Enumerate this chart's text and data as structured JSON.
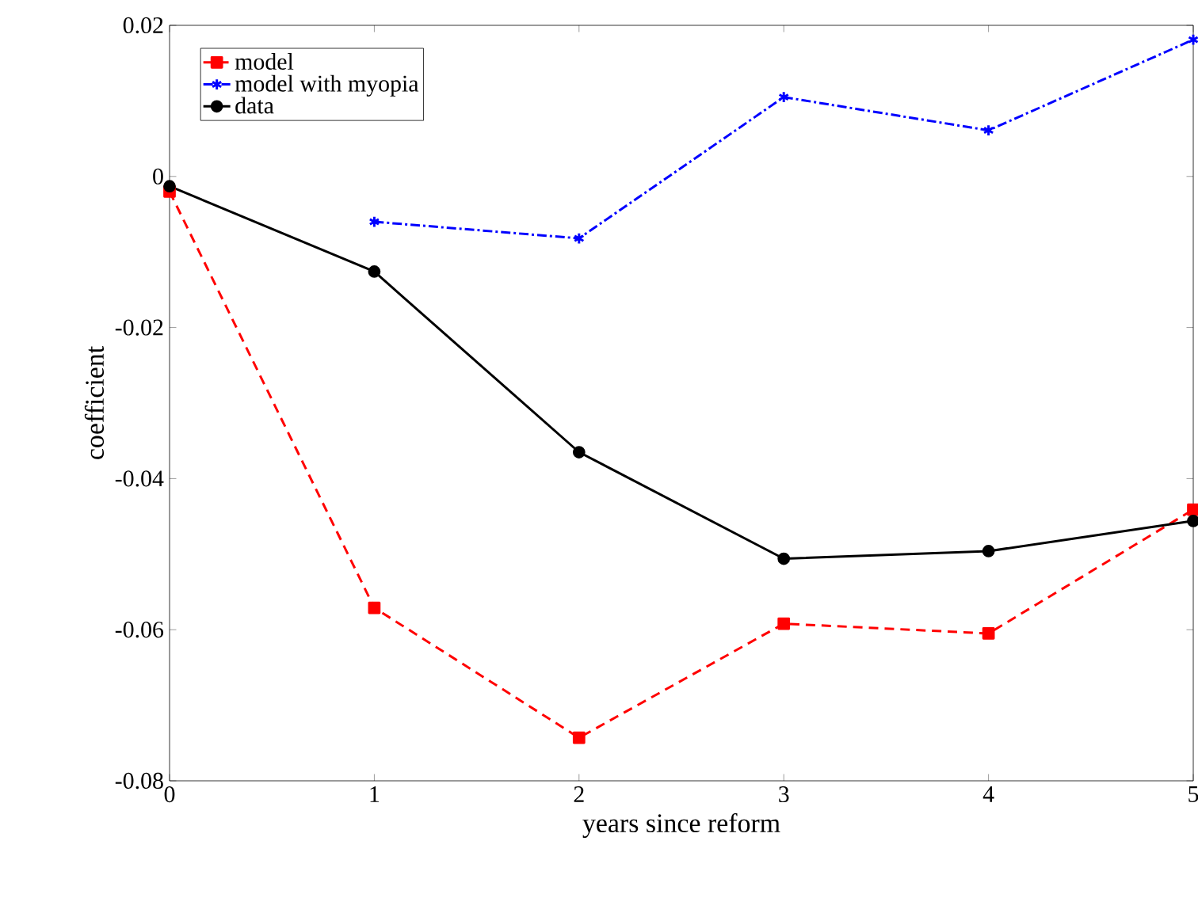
{
  "chart_data": {
    "type": "line",
    "xlabel": "years since reform",
    "ylabel": "coefficient",
    "x": [
      0,
      1,
      2,
      3,
      4,
      5
    ],
    "xlim": [
      0,
      5
    ],
    "xticks": [
      0,
      1,
      2,
      3,
      4,
      5
    ],
    "ylim": [
      -0.08,
      0.02
    ],
    "yticks": [
      {
        "value": -0.08,
        "label": "-0.08"
      },
      {
        "value": -0.06,
        "label": "-0.06"
      },
      {
        "value": -0.04,
        "label": "-0.04"
      },
      {
        "value": -0.02,
        "label": "-0.02"
      },
      {
        "value": 0,
        "label": "0"
      },
      {
        "value": 0.02,
        "label": "0.02"
      }
    ],
    "legend": "top left",
    "series": [
      {
        "name": "model",
        "color": "#ff0000",
        "marker": "square",
        "line_style": "dashed",
        "values": [
          -0.002,
          -0.0571,
          -0.0743,
          -0.0592,
          -0.0605,
          -0.0441
        ]
      },
      {
        "name": "model with myopia",
        "color": "#0000ff",
        "marker": "cross",
        "line_style": "dashdot",
        "values": [
          null,
          -0.006,
          -0.0082,
          0.0105,
          0.0061,
          0.0181
        ]
      },
      {
        "name": "data",
        "color": "#000000",
        "marker": "circle",
        "line_style": "solid",
        "values": [
          -0.0013,
          -0.0126,
          -0.0365,
          -0.0506,
          -0.0496,
          -0.0456
        ]
      }
    ]
  }
}
